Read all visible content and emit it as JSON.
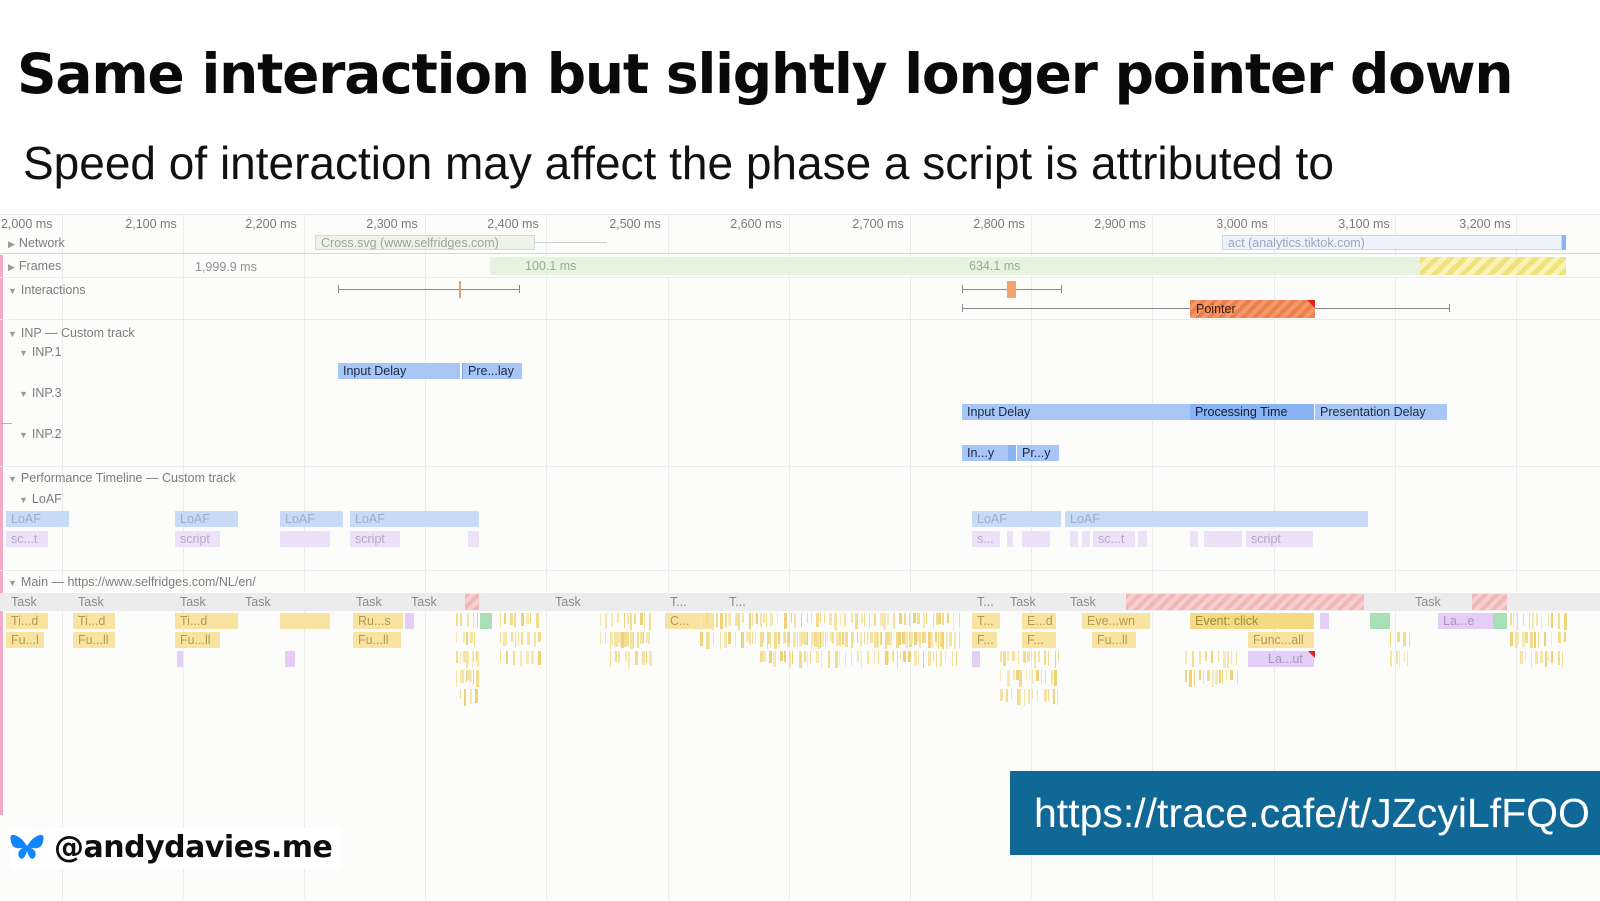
{
  "slide": {
    "title": "Same interaction but slightly longer pointer down",
    "subtitle": "Speed of interaction may affect the phase a script is attributed to"
  },
  "ruler": {
    "ticks": [
      "2,000 ms",
      "2,100 ms",
      "2,200 ms",
      "2,300 ms",
      "2,400 ms",
      "2,500 ms",
      "2,600 ms",
      "2,700 ms",
      "2,800 ms",
      "2,900 ms",
      "3,000 ms",
      "3,100 ms",
      "3,200 ms"
    ]
  },
  "tracks": {
    "network": {
      "label": "Network",
      "request_1": "Cross.svg (www.selfridges.com)",
      "request_2": "act (analytics.tiktok.com)"
    },
    "frames": {
      "label": "Frames",
      "frame_1": "1,999.9 ms",
      "frame_2": "100.1 ms",
      "frame_3": "634.1 ms"
    },
    "interactions": {
      "label": "Interactions",
      "pointer": "Pointer"
    },
    "inp": {
      "label": "INP — Custom track",
      "inp1": {
        "label": "INP.1",
        "input_delay": "Input Delay",
        "presentation": "Pre...lay"
      },
      "inp3": {
        "label": "INP.3",
        "input_delay": "Input Delay",
        "processing": "Processing Time",
        "presentation": "Presentation Delay"
      },
      "inp2": {
        "label": "INP.2",
        "input_delay": "In...y",
        "presentation": "Pr...y"
      }
    },
    "perf_timeline": {
      "label": "Performance Timeline — Custom track",
      "loaf_label": "LoAF",
      "loaf": "LoAF",
      "script": "script",
      "script_short_1": "sc...t",
      "script_short_2": "s...",
      "script_short_3": "sc...t"
    },
    "main": {
      "label": "Main — https://www.selfridges.com/NL/en/",
      "task": "Task",
      "task_t": "T...",
      "timer": "Ti...d",
      "func": "Fu...l",
      "func_all": "Fu...ll",
      "run_scripts": "Ru...s",
      "compile": "C...",
      "event_d": "E...d",
      "f_short": "F...",
      "event_down": "Eve...wn",
      "event_click": "Event: click",
      "func_call": "Func...all",
      "layout": "La...ut",
      "layout_e": "La...e"
    }
  },
  "footer": {
    "url": "https://trace.cafe/t/JZcyiLfFQO",
    "handle": "@andydavies.me"
  },
  "colors": {
    "url_box": "#106897",
    "butterfly": "#1185fe"
  }
}
